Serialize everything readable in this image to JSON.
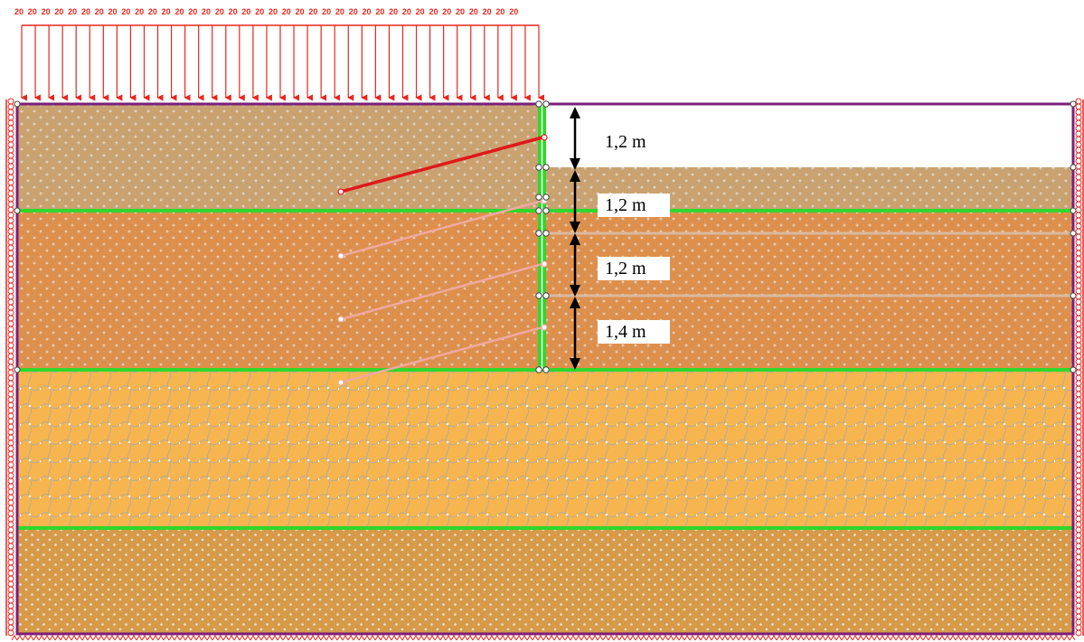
{
  "colors": {
    "soil_layer_1": "#c9a270",
    "soil_layer_2": "#dd8f4c",
    "soil_layer_3": "#f7b54f",
    "soil_layer_4": "#d69a48",
    "mesh_line": "#9aa7b8",
    "mesh_node": "#ffffff",
    "layer_interface": "#2fd82b",
    "wall": "#2fd82b",
    "boundary": "#7a1f7a",
    "support": "#e8261e",
    "load_arrow": "#e8261e",
    "anchor_active": "#e0191b",
    "anchor_inactive": "#f0a9a0",
    "dimension": "#000000"
  },
  "surcharge": {
    "value_label": "20",
    "arrow_count": 39
  },
  "dimensions": [
    {
      "label": "1,2 m"
    },
    {
      "label": "1,2 m"
    },
    {
      "label": "1,2 m"
    },
    {
      "label": "1,4 m"
    }
  ],
  "anchors": [
    {
      "state": "active"
    },
    {
      "state": "inactive"
    },
    {
      "state": "inactive"
    },
    {
      "state": "inactive"
    }
  ],
  "mesh_regions": [
    {
      "name": "soil-layer-1"
    },
    {
      "name": "soil-layer-2"
    },
    {
      "name": "soil-layer-3"
    },
    {
      "name": "soil-layer-4"
    }
  ]
}
